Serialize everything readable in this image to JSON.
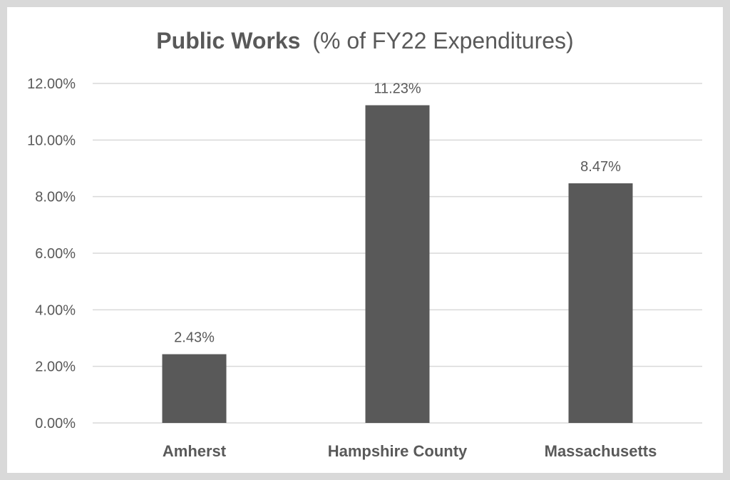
{
  "chart_data": {
    "type": "bar",
    "title_bold": "Public Works",
    "title_rest": "(% of FY22 Expenditures)",
    "categories": [
      "Amherst",
      "Hampshire County",
      "Massachusetts"
    ],
    "values": [
      2.43,
      11.23,
      8.47
    ],
    "value_labels": [
      "2.43%",
      "11.23%",
      "8.47%"
    ],
    "yticks": [
      "0.00%",
      "2.00%",
      "4.00%",
      "6.00%",
      "8.00%",
      "10.00%",
      "12.00%"
    ],
    "ylim": [
      0,
      12
    ],
    "grid": true,
    "xlabel": "",
    "ylabel": "",
    "colors": {
      "bar": "#595959",
      "grid": "#d9d9d9",
      "text": "#595959",
      "frame": "#d9d9d9"
    }
  }
}
